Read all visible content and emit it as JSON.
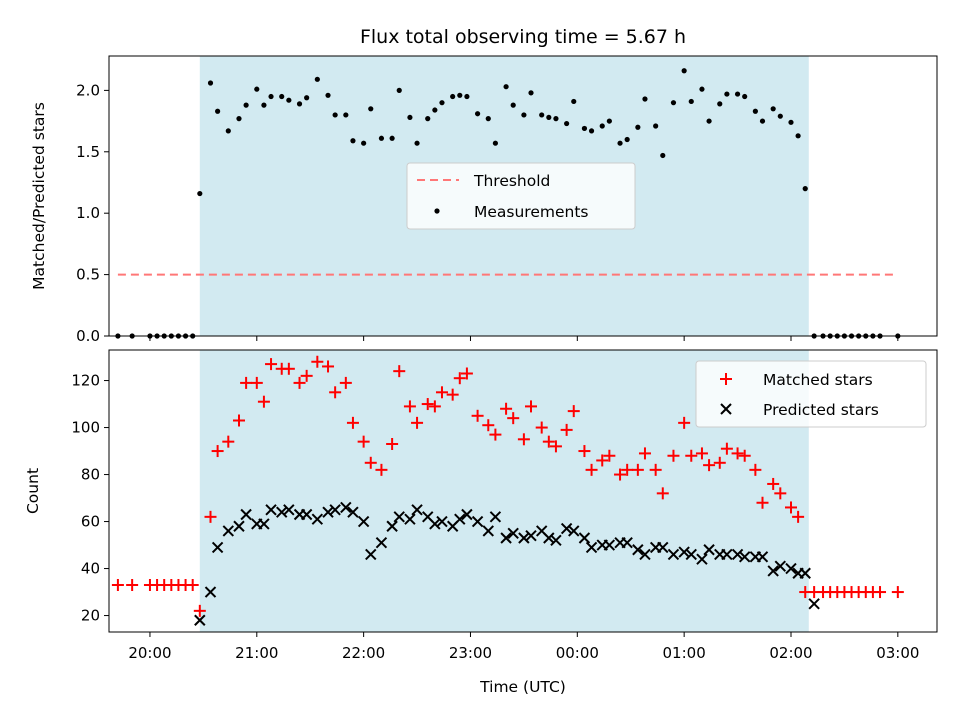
{
  "chart_data": [
    {
      "type": "scatter",
      "title": "Flux total observing time = 5.67 h",
      "xlabel": "",
      "ylabel": "Matched/Predicted stars",
      "xlim": [
        "19:37",
        "03:22"
      ],
      "ylim": [
        0,
        2.28
      ],
      "yticks": [
        "0.0",
        "0.5",
        "1.0",
        "1.5",
        "2.0"
      ],
      "observing_window": [
        "20:28",
        "02:10"
      ],
      "grid": false,
      "legend_position": "center",
      "threshold": {
        "name": "Threshold",
        "value": 0.5,
        "x_range": [
          "19:42",
          "03:00"
        ],
        "color": "#ff7777"
      },
      "series": [
        {
          "name": "Measurements",
          "color": "#000000",
          "x": [
            "19:42",
            "19:50",
            "20:00",
            "20:04",
            "20:08",
            "20:12",
            "20:16",
            "20:20",
            "20:24",
            "20:28",
            "20:34",
            "20:38",
            "20:44",
            "20:50",
            "20:54",
            "21:00",
            "21:04",
            "21:08",
            "21:14",
            "21:18",
            "21:24",
            "21:28",
            "21:34",
            "21:40",
            "21:44",
            "21:50",
            "21:54",
            "22:00",
            "22:04",
            "22:10",
            "22:16",
            "22:20",
            "22:26",
            "22:30",
            "22:36",
            "22:40",
            "22:44",
            "22:50",
            "22:54",
            "22:58",
            "23:04",
            "23:10",
            "23:14",
            "23:20",
            "23:24",
            "23:30",
            "23:34",
            "23:40",
            "23:44",
            "23:48",
            "23:54",
            "23:58",
            "00:04",
            "00:08",
            "00:14",
            "00:18",
            "00:24",
            "00:28",
            "00:34",
            "00:38",
            "00:44",
            "00:48",
            "00:54",
            "01:00",
            "01:04",
            "01:10",
            "01:14",
            "01:20",
            "01:24",
            "01:30",
            "01:34",
            "01:40",
            "01:44",
            "01:50",
            "01:54",
            "02:00",
            "02:04",
            "02:08",
            "02:13",
            "02:18",
            "02:22",
            "02:26",
            "02:30",
            "02:34",
            "02:38",
            "02:42",
            "02:46",
            "02:50",
            "03:00"
          ],
          "y": [
            0,
            0,
            0,
            0,
            0,
            0,
            0,
            0,
            0,
            1.16,
            2.06,
            1.83,
            1.67,
            1.77,
            1.88,
            2.01,
            1.88,
            1.95,
            1.95,
            1.92,
            1.89,
            1.94,
            2.09,
            1.96,
            1.8,
            1.8,
            1.59,
            1.57,
            1.85,
            1.61,
            1.61,
            2.0,
            1.78,
            1.57,
            1.77,
            1.84,
            1.9,
            1.95,
            1.96,
            1.95,
            1.81,
            1.77,
            1.57,
            2.03,
            1.88,
            1.8,
            1.98,
            1.8,
            1.78,
            1.77,
            1.73,
            1.91,
            1.69,
            1.67,
            1.71,
            1.75,
            1.57,
            1.6,
            1.7,
            1.93,
            1.71,
            1.47,
            1.9,
            2.16,
            1.91,
            2.01,
            1.75,
            1.89,
            1.97,
            1.97,
            1.95,
            1.83,
            1.75,
            1.85,
            1.79,
            1.74,
            1.63,
            1.2,
            0,
            0,
            0,
            0,
            0,
            0,
            0,
            0,
            0,
            0,
            0
          ]
        }
      ]
    },
    {
      "type": "scatter",
      "title": "",
      "xlabel": "Time (UTC)",
      "ylabel": "Count",
      "xlim": [
        "19:37",
        "03:22"
      ],
      "ylim": [
        13,
        133
      ],
      "xticks": [
        "20:00",
        "21:00",
        "22:00",
        "23:00",
        "00:00",
        "01:00",
        "02:00",
        "03:00"
      ],
      "yticks": [
        "20",
        "40",
        "60",
        "80",
        "100",
        "120"
      ],
      "observing_window": [
        "20:28",
        "02:10"
      ],
      "grid": false,
      "legend_position": "top-right",
      "series": [
        {
          "name": "Matched stars",
          "marker": "+",
          "color": "#ff0000",
          "x": [
            "19:42",
            "19:50",
            "20:00",
            "20:04",
            "20:08",
            "20:12",
            "20:16",
            "20:20",
            "20:24",
            "20:28",
            "20:34",
            "20:38",
            "20:44",
            "20:50",
            "20:54",
            "21:00",
            "21:04",
            "21:08",
            "21:14",
            "21:18",
            "21:24",
            "21:28",
            "21:34",
            "21:40",
            "21:44",
            "21:50",
            "21:54",
            "22:00",
            "22:04",
            "22:10",
            "22:16",
            "22:20",
            "22:26",
            "22:30",
            "22:36",
            "22:40",
            "22:44",
            "22:50",
            "22:54",
            "22:58",
            "23:04",
            "23:10",
            "23:14",
            "23:20",
            "23:24",
            "23:30",
            "23:34",
            "23:40",
            "23:44",
            "23:48",
            "23:54",
            "23:58",
            "00:04",
            "00:08",
            "00:14",
            "00:18",
            "00:24",
            "00:28",
            "00:34",
            "00:38",
            "00:44",
            "00:48",
            "00:54",
            "01:00",
            "01:04",
            "01:10",
            "01:14",
            "01:20",
            "01:24",
            "01:30",
            "01:34",
            "01:40",
            "01:44",
            "01:50",
            "01:54",
            "02:00",
            "02:04",
            "02:08",
            "02:13",
            "02:18",
            "02:22",
            "02:26",
            "02:30",
            "02:34",
            "02:38",
            "02:42",
            "02:46",
            "02:50",
            "03:00"
          ],
          "y": [
            33,
            33,
            33,
            33,
            33,
            33,
            33,
            33,
            33,
            22,
            62,
            90,
            94,
            103,
            119,
            119,
            111,
            127,
            125,
            125,
            119,
            122,
            128,
            126,
            115,
            119,
            102,
            94,
            85,
            82,
            93,
            124,
            109,
            102,
            110,
            109,
            115,
            114,
            121,
            123,
            105,
            101,
            97,
            108,
            104,
            95,
            109,
            100,
            94,
            92,
            99,
            107,
            90,
            82,
            86,
            88,
            80,
            82,
            82,
            89,
            82,
            72,
            88,
            102,
            88,
            89,
            84,
            85,
            91,
            89,
            88,
            82,
            68,
            76,
            72,
            66,
            62,
            30,
            30,
            30,
            30,
            30,
            30,
            30,
            30,
            30,
            30,
            30,
            30
          ]
        },
        {
          "name": "Predicted stars",
          "marker": "x",
          "color": "#000000",
          "x": [
            "20:28",
            "20:34",
            "20:38",
            "20:44",
            "20:50",
            "20:54",
            "21:00",
            "21:04",
            "21:08",
            "21:14",
            "21:18",
            "21:24",
            "21:28",
            "21:34",
            "21:40",
            "21:44",
            "21:50",
            "21:54",
            "22:00",
            "22:04",
            "22:10",
            "22:16",
            "22:20",
            "22:26",
            "22:30",
            "22:36",
            "22:40",
            "22:44",
            "22:50",
            "22:54",
            "22:58",
            "23:04",
            "23:10",
            "23:14",
            "23:20",
            "23:24",
            "23:30",
            "23:34",
            "23:40",
            "23:44",
            "23:48",
            "23:54",
            "23:58",
            "00:04",
            "00:08",
            "00:14",
            "00:18",
            "00:24",
            "00:28",
            "00:34",
            "00:38",
            "00:44",
            "00:48",
            "00:54",
            "01:00",
            "01:04",
            "01:10",
            "01:14",
            "01:20",
            "01:24",
            "01:30",
            "01:34",
            "01:40",
            "01:44",
            "01:50",
            "01:54",
            "02:00",
            "02:04",
            "02:08",
            "02:13"
          ],
          "y": [
            18,
            30,
            49,
            56,
            58,
            63,
            59,
            59,
            65,
            64,
            65,
            63,
            63,
            61,
            64,
            65,
            66,
            64,
            60,
            46,
            51,
            58,
            62,
            61,
            65,
            62,
            59,
            60,
            58,
            61,
            63,
            60,
            56,
            62,
            53,
            55,
            53,
            54,
            56,
            53,
            52,
            57,
            56,
            53,
            49,
            50,
            50,
            51,
            51,
            48,
            46,
            49,
            49,
            46,
            47,
            46,
            44,
            48,
            46,
            46,
            46,
            45,
            45,
            45,
            39,
            41,
            40,
            38,
            38,
            25
          ]
        }
      ]
    }
  ]
}
